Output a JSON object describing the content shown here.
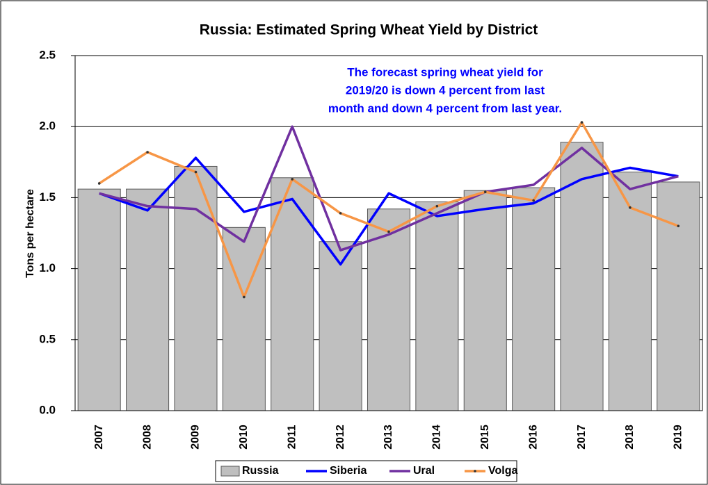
{
  "chart_data": {
    "type": "combo",
    "title": "Russia: Estimated Spring Wheat Yield by District",
    "annotation": [
      "The forecast spring wheat yield for",
      "2019/20 is down 4 percent from last",
      "month and down 4 percent from last year."
    ],
    "y_label": "Tons per hectare",
    "categories": [
      "2007",
      "2008",
      "2009",
      "2010",
      "2011",
      "2012",
      "2013",
      "2014",
      "2015",
      "2016",
      "2017",
      "2018",
      "2019"
    ],
    "series": [
      {
        "name": "Russia",
        "type": "bar",
        "color": "#bfbfbf",
        "values": [
          1.56,
          1.56,
          1.72,
          1.29,
          1.64,
          1.19,
          1.42,
          1.47,
          1.55,
          1.57,
          1.89,
          1.68,
          1.61
        ]
      },
      {
        "name": "Siberia",
        "type": "line",
        "color": "#0000ff",
        "values": [
          1.53,
          1.41,
          1.78,
          1.4,
          1.49,
          1.03,
          1.53,
          1.37,
          1.42,
          1.46,
          1.63,
          1.71,
          1.65
        ]
      },
      {
        "name": "Ural",
        "type": "line",
        "color": "#7030a0",
        "values": [
          1.53,
          1.44,
          1.42,
          1.19,
          2.0,
          1.13,
          1.24,
          1.39,
          1.54,
          1.59,
          1.85,
          1.56,
          1.65
        ]
      },
      {
        "name": "Volga",
        "type": "line",
        "color": "#f79646",
        "markers": true,
        "values": [
          1.6,
          1.82,
          1.68,
          0.8,
          1.63,
          1.39,
          1.26,
          1.44,
          1.54,
          1.48,
          2.03,
          1.43,
          1.3
        ]
      }
    ],
    "ylim": [
      0,
      2.5
    ],
    "yticks": [
      {
        "value": 0,
        "label": "0.0"
      },
      0.5,
      {
        "value": 1,
        "label": "1.0"
      },
      1.5,
      {
        "value": 2,
        "label": "2.0"
      },
      2.5
    ],
    "grid": true,
    "legend": "bottom"
  }
}
